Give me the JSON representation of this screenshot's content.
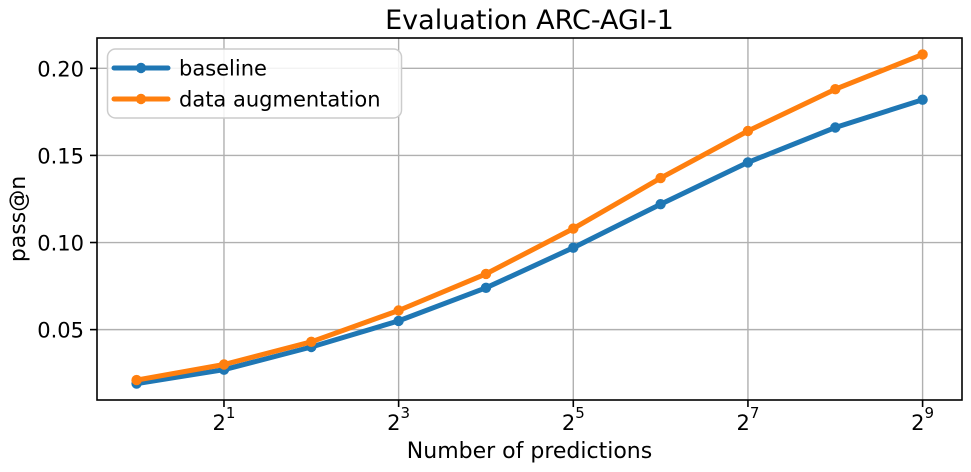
{
  "chart_data": {
    "type": "line",
    "title": "Evaluation ARC-AGI-1",
    "xlabel": "Number of predictions",
    "ylabel": "pass@n",
    "x_scale": "log2",
    "x": [
      1,
      2,
      4,
      8,
      16,
      32,
      64,
      128,
      256,
      512
    ],
    "series": [
      {
        "name": "baseline",
        "color": "#1f77b4",
        "values": [
          0.019,
          0.027,
          0.04,
          0.055,
          0.074,
          0.097,
          0.122,
          0.146,
          0.166,
          0.182
        ]
      },
      {
        "name": "data augmentation",
        "color": "#ff7f0e",
        "values": [
          0.021,
          0.03,
          0.043,
          0.061,
          0.082,
          0.108,
          0.137,
          0.164,
          0.188,
          0.208
        ]
      }
    ],
    "x_ticks": [
      {
        "value": 2,
        "base": "2",
        "exp": "1"
      },
      {
        "value": 8,
        "base": "2",
        "exp": "3"
      },
      {
        "value": 32,
        "base": "2",
        "exp": "5"
      },
      {
        "value": 128,
        "base": "2",
        "exp": "7"
      },
      {
        "value": 512,
        "base": "2",
        "exp": "9"
      }
    ],
    "y_ticks": [
      {
        "value": 0.05,
        "label": "0.05"
      },
      {
        "value": 0.1,
        "label": "0.10"
      },
      {
        "value": 0.15,
        "label": "0.15"
      },
      {
        "value": 0.2,
        "label": "0.20"
      }
    ],
    "xlim": [
      0.73,
      700
    ],
    "ylim": [
      0.0096,
      0.2174
    ],
    "grid": true,
    "grid_color": "#b0b0b0",
    "spine_color": "#000000",
    "legend_position": "upper left",
    "legend_edge_color": "#cccccc",
    "background": "#ffffff"
  }
}
